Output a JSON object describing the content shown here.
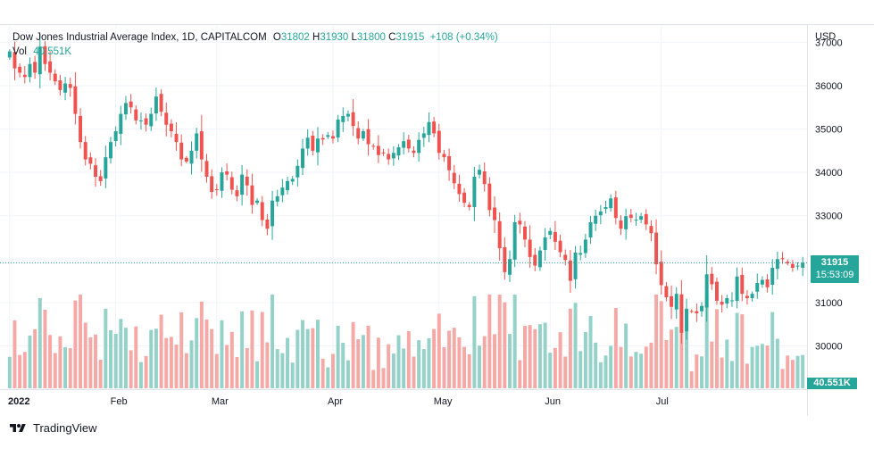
{
  "legend": {
    "title": "Dow Jones Industrial Average Index, 1D, CAPITALCOM",
    "open_label": "O",
    "open": "31802",
    "high_label": "H",
    "high": "31930",
    "low_label": "L",
    "low": "31800",
    "close_label": "C",
    "close": "31915",
    "change": "+108 (+0.34%)",
    "vol_label": "Vol",
    "vol": "40.551K"
  },
  "axis": {
    "currency": "USD"
  },
  "last_price": {
    "price": "31915",
    "countdown": "15:53:09"
  },
  "volume_tag": "40.551K",
  "footer": {
    "brand": "TradingView"
  },
  "colors": {
    "up": "#26a69a",
    "down": "#ef5350",
    "up_vol": "#94d2c9",
    "down_vol": "#f4a9a6",
    "grid": "#f0f3fa"
  },
  "chart_data": {
    "type": "candlestick",
    "y_axis_ticks": [
      30000,
      31000,
      32000,
      33000,
      34000,
      35000,
      36000,
      37000
    ],
    "ylim": [
      29000,
      37400
    ],
    "x_axis_ticks": [
      "2022",
      "Feb",
      "Mar",
      "Apr",
      "May",
      "Jun",
      "Jul"
    ],
    "x_tick_dates": [
      "2022-01-03",
      "2022-02-01",
      "2022-03-01",
      "2022-04-01",
      "2022-05-02",
      "2022-06-01",
      "2022-07-01"
    ],
    "closes": [
      36790,
      36400,
      36300,
      36200,
      36500,
      36300,
      36900,
      36500,
      36300,
      36100,
      35900,
      36050,
      35950,
      35350,
      34700,
      34300,
      34200,
      33900,
      33800,
      34350,
      34700,
      34950,
      35350,
      35600,
      35500,
      35200,
      35200,
      35100,
      35350,
      35750,
      35400,
      35100,
      34950,
      34700,
      34300,
      34250,
      34500,
      34900,
      34300,
      33900,
      33550,
      33600,
      34000,
      33950,
      33600,
      33450,
      33950,
      33700,
      33250,
      33350,
      32900,
      32700,
      33350,
      33450,
      33650,
      33800,
      33850,
      34150,
      34550,
      34800,
      34500,
      34780,
      34760,
      34860,
      34780,
      35220,
      35300,
      35350,
      35070,
      34780,
      34950,
      34650,
      34600,
      34400,
      34450,
      34300,
      34450,
      34580,
      34720,
      34550,
      34450,
      34750,
      34900,
      35160,
      34900,
      34450,
      34350,
      34050,
      33750,
      33500,
      33300,
      33200,
      33900,
      34060,
      33730,
      33130,
      32900,
      32250,
      31700,
      32000,
      32850,
      32800,
      32450,
      32050,
      31850,
      32200,
      32500,
      32650,
      32400,
      32160,
      31980,
      31500,
      32150,
      32140,
      32450,
      32850,
      33000,
      33100,
      33200,
      33400,
      32950,
      32700,
      32990,
      32950,
      32910,
      32990,
      32800,
      32600,
      31880,
      31400,
      31120,
      30900,
      31200,
      30300,
      30850,
      30800,
      30750,
      30920,
      31650,
      31420,
      31040,
      30950,
      31100,
      31050,
      31600,
      31200,
      31100,
      31200,
      31450,
      31520,
      31350,
      31800,
      32000,
      32000,
      31900,
      31800,
      31850,
      31915
    ]
  }
}
